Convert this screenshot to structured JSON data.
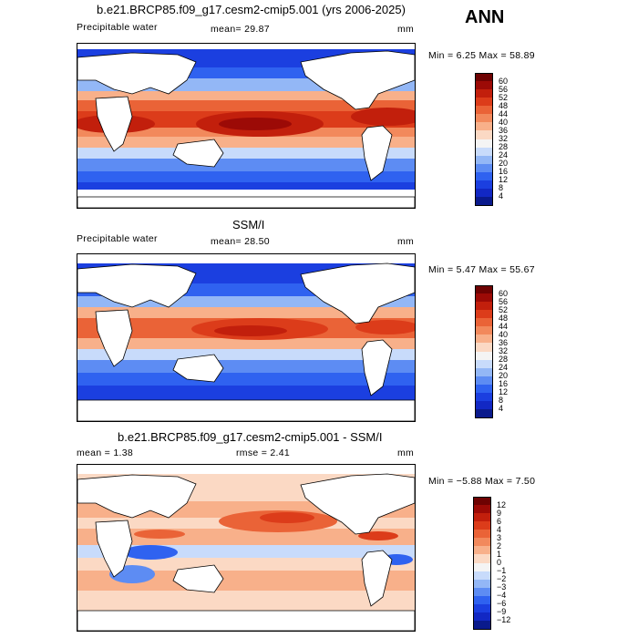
{
  "season": "ANN",
  "colors": {
    "pw": [
      "#0a1a8c",
      "#1228c4",
      "#1b3fe0",
      "#2f62f0",
      "#5d8cf3",
      "#93b7f6",
      "#c8dbfb",
      "#f4f4f4",
      "#fbd9c4",
      "#f8b08a",
      "#f2895c",
      "#ea6337",
      "#dc3c1a",
      "#c21f0c",
      "#9c0a06",
      "#6e0202"
    ],
    "diff": [
      "#0a1a8c",
      "#1228c4",
      "#1b3fe0",
      "#2f62f0",
      "#5d8cf3",
      "#93b7f6",
      "#c8dbfb",
      "#f4f4f4",
      "#fbd9c4",
      "#f8b08a",
      "#f2895c",
      "#ea6337",
      "#dc3c1a",
      "#c21f0c",
      "#9c0a06",
      "#6e0202"
    ]
  },
  "panels": [
    {
      "title": "b.e21.BRCP85.f09_g17.cesm2-cmip5.001 (yrs 2006-2025)",
      "variable": "Precipitable water",
      "mean_text": "mean=  29.87",
      "units": "mm",
      "minmax": "Min =    6.25  Max =   58.89",
      "colorbar_labels": [
        "60",
        "56",
        "52",
        "48",
        "44",
        "40",
        "36",
        "32",
        "28",
        "24",
        "20",
        "16",
        "12",
        "8",
        "4"
      ]
    },
    {
      "title": "SSM/I",
      "variable": "Precipitable water",
      "mean_text": "mean=  28.50",
      "units": "mm",
      "minmax": "Min =    5.47  Max =   55.67",
      "colorbar_labels": [
        "60",
        "56",
        "52",
        "48",
        "44",
        "40",
        "36",
        "32",
        "28",
        "24",
        "20",
        "16",
        "12",
        "8",
        "4"
      ]
    },
    {
      "title": "b.e21.BRCP85.f09_g17.cesm2-cmip5.001 - SSM/I",
      "mean_text": "mean =    1.38",
      "rmse_text": "rmse =    2.41",
      "units": "mm",
      "minmax": "Min =  −5.88  Max =    7.50",
      "colorbar_labels": [
        "12",
        "9",
        "6",
        "4",
        "3",
        "2",
        "1",
        "0",
        "−1",
        "−2",
        "−3",
        "−4",
        "−6",
        "−9",
        "−12"
      ]
    }
  ]
}
